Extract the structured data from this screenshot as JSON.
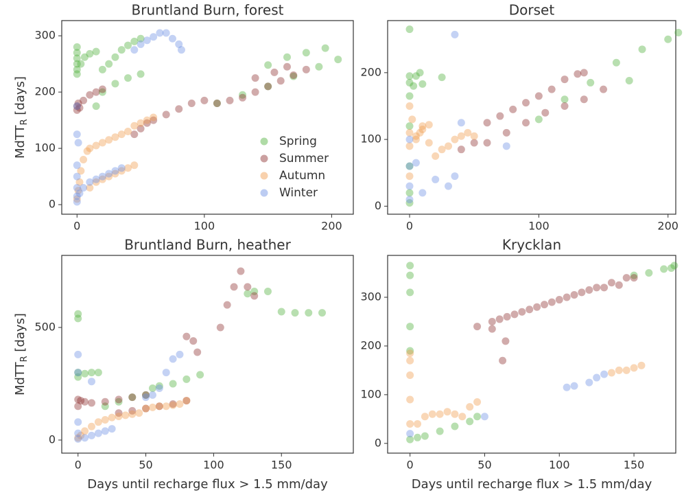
{
  "chart_data": [
    {
      "type": "scatter",
      "title": "Bruntland Burn, forest",
      "ylabel": {
        "main": "MdTT",
        "sub": "R",
        "rest": " [days]"
      },
      "xlim": [
        -12,
        217
      ],
      "ylim": [
        -17,
        327
      ],
      "xticks": [
        0,
        100,
        200
      ],
      "yticks": [
        0,
        100,
        200,
        300
      ],
      "legend": "lower right",
      "series": [
        {
          "name": "Spring",
          "color": "#4daf3a",
          "x": [
            0,
            0,
            0,
            0,
            0,
            0,
            3,
            6,
            10,
            15,
            20,
            25,
            30,
            35,
            40,
            45,
            50,
            20,
            30,
            40,
            50,
            110,
            130,
            150,
            170,
            190,
            205,
            150,
            165,
            180,
            195,
            15
          ],
          "y": [
            280,
            270,
            260,
            250,
            240,
            232,
            250,
            262,
            268,
            272,
            240,
            250,
            262,
            275,
            283,
            290,
            295,
            200,
            215,
            225,
            232,
            180,
            195,
            210,
            228,
            245,
            258,
            248,
            262,
            270,
            278,
            175
          ]
        },
        {
          "name": "Summer",
          "color": "#8b2c2c",
          "x": [
            0,
            0,
            1,
            2,
            5,
            10,
            15,
            20,
            45,
            50,
            55,
            60,
            70,
            80,
            90,
            100,
            110,
            120,
            130,
            140,
            150,
            160,
            170,
            180,
            140,
            155,
            165
          ],
          "y": [
            168,
            175,
            180,
            172,
            185,
            195,
            200,
            205,
            125,
            135,
            145,
            150,
            160,
            170,
            180,
            185,
            180,
            185,
            190,
            200,
            210,
            220,
            230,
            240,
            225,
            235,
            245
          ]
        },
        {
          "name": "Autumn",
          "color": "#ef9a4a",
          "x": [
            0,
            1,
            2,
            3,
            5,
            8,
            10,
            15,
            20,
            25,
            30,
            35,
            40,
            45,
            50,
            55,
            60,
            10,
            15,
            20,
            25,
            30,
            35,
            40,
            45
          ],
          "y": [
            10,
            25,
            40,
            60,
            80,
            95,
            100,
            105,
            110,
            115,
            120,
            125,
            130,
            140,
            145,
            150,
            155,
            30,
            40,
            45,
            50,
            55,
            60,
            65,
            70
          ]
        },
        {
          "name": "Winter",
          "color": "#6b8fe3",
          "x": [
            0,
            0,
            0,
            0,
            0,
            0,
            1,
            2,
            5,
            10,
            15,
            20,
            25,
            30,
            35,
            45,
            50,
            55,
            60,
            65,
            70,
            75,
            80,
            82,
            0
          ],
          "y": [
            5,
            15,
            30,
            50,
            70,
            125,
            110,
            20,
            30,
            40,
            45,
            50,
            55,
            60,
            65,
            275,
            285,
            292,
            298,
            305,
            305,
            295,
            285,
            275,
            175
          ]
        }
      ]
    },
    {
      "type": "scatter",
      "title": "Dorset",
      "xlim": [
        -17,
        206
      ],
      "ylim": [
        -12,
        278
      ],
      "xticks": [
        0,
        100,
        200
      ],
      "yticks": [
        0,
        100,
        200
      ],
      "series": [
        {
          "color": "#4daf3a",
          "x": [
            0,
            0,
            0,
            0,
            0,
            0,
            0,
            0,
            3,
            5,
            8,
            10,
            25,
            100,
            120,
            140,
            160,
            180,
            200,
            208,
            170
          ],
          "y": [
            5,
            20,
            60,
            120,
            165,
            185,
            195,
            265,
            180,
            195,
            200,
            183,
            193,
            130,
            160,
            185,
            215,
            235,
            250,
            260,
            188
          ]
        },
        {
          "color": "#8b2c2c",
          "x": [
            40,
            50,
            60,
            70,
            80,
            90,
            100,
            110,
            120,
            130,
            135,
            60,
            75,
            90,
            105,
            120,
            135,
            150
          ],
          "y": [
            85,
            95,
            125,
            135,
            145,
            155,
            165,
            175,
            190,
            198,
            200,
            95,
            110,
            125,
            140,
            150,
            160,
            175
          ]
        },
        {
          "color": "#ef9a4a",
          "x": [
            0,
            0,
            0,
            0,
            2,
            5,
            8,
            10,
            15,
            20,
            25,
            30,
            35,
            40,
            45,
            50,
            5,
            10,
            15
          ],
          "y": [
            45,
            90,
            110,
            150,
            130,
            105,
            110,
            120,
            95,
            75,
            85,
            90,
            100,
            105,
            110,
            105,
            100,
            115,
            122
          ]
        },
        {
          "color": "#6b8fe3",
          "x": [
            0,
            0,
            0,
            5,
            10,
            20,
            30,
            35,
            40,
            75,
            0,
            35
          ],
          "y": [
            10,
            30,
            60,
            65,
            20,
            40,
            30,
            45,
            125,
            90,
            100,
            257
          ]
        }
      ]
    },
    {
      "type": "scatter",
      "title": "Bruntland Burn, heather",
      "ylabel": {
        "main": "MdTT",
        "sub": "R",
        "rest": " [days]"
      },
      "xlabel": "Days until recharge flux > 1.5 mm/day",
      "xlim": [
        -12,
        203
      ],
      "ylim": [
        -58,
        820
      ],
      "xticks": [
        0,
        50,
        100,
        150
      ],
      "yticks": [
        0,
        500
      ],
      "series": [
        {
          "color": "#4daf3a",
          "x": [
            0,
            0,
            0,
            0,
            5,
            10,
            15,
            20,
            30,
            40,
            50,
            55,
            60,
            70,
            80,
            90,
            125,
            130,
            140,
            150,
            160,
            170,
            180
          ],
          "y": [
            280,
            300,
            540,
            560,
            295,
            300,
            300,
            150,
            170,
            190,
            200,
            230,
            240,
            250,
            270,
            290,
            650,
            660,
            660,
            570,
            565,
            565,
            565
          ]
        },
        {
          "color": "#8b2c2c",
          "x": [
            0,
            0,
            2,
            5,
            10,
            20,
            30,
            40,
            50,
            30,
            40,
            50,
            60,
            70,
            80,
            80,
            85,
            88,
            105,
            110,
            115,
            120,
            125,
            130
          ],
          "y": [
            150,
            180,
            175,
            170,
            165,
            170,
            180,
            190,
            200,
            120,
            130,
            140,
            150,
            160,
            175,
            460,
            440,
            390,
            500,
            600,
            680,
            750,
            680,
            640
          ]
        },
        {
          "color": "#ef9a4a",
          "x": [
            0,
            2,
            5,
            10,
            15,
            20,
            25,
            30,
            35,
            40,
            45,
            50,
            55,
            60,
            65,
            70,
            75,
            80
          ],
          "y": [
            10,
            20,
            40,
            60,
            80,
            90,
            100,
            105,
            110,
            115,
            120,
            140,
            145,
            150,
            150,
            155,
            160,
            175
          ]
        },
        {
          "color": "#6b8fe3",
          "x": [
            0,
            0,
            0,
            0,
            0,
            5,
            10,
            15,
            20,
            25,
            50,
            55,
            60,
            65,
            70,
            75,
            10
          ],
          "y": [
            5,
            30,
            80,
            300,
            380,
            10,
            20,
            30,
            40,
            50,
            190,
            200,
            230,
            300,
            360,
            380,
            260
          ]
        }
      ]
    },
    {
      "type": "scatter",
      "title": "Krycklan",
      "xlabel": "Days until recharge flux > 1.5 mm/day",
      "xlim": [
        -15,
        178
      ],
      "ylim": [
        -20,
        386
      ],
      "xticks": [
        0,
        50,
        100,
        150
      ],
      "yticks": [
        0,
        100,
        200,
        300
      ],
      "series": [
        {
          "color": "#4daf3a",
          "x": [
            0,
            0,
            0,
            0,
            0,
            0,
            5,
            10,
            20,
            30,
            40,
            45,
            150,
            160,
            170,
            175,
            177
          ],
          "y": [
            8,
            190,
            240,
            310,
            345,
            365,
            12,
            15,
            25,
            35,
            45,
            55,
            345,
            350,
            358,
            360,
            365
          ]
        },
        {
          "color": "#8b2c2c",
          "x": [
            45,
            55,
            65,
            75,
            85,
            95,
            105,
            115,
            125,
            135,
            145,
            60,
            70,
            80,
            90,
            100,
            110,
            120,
            130,
            140,
            150,
            62,
            64,
            55
          ],
          "y": [
            240,
            250,
            260,
            270,
            280,
            290,
            300,
            310,
            320,
            330,
            340,
            255,
            265,
            275,
            285,
            295,
            305,
            315,
            320,
            325,
            340,
            170,
            210,
            235
          ]
        },
        {
          "color": "#ef9a4a",
          "x": [
            0,
            0,
            0,
            0,
            0,
            5,
            10,
            15,
            20,
            25,
            30,
            35,
            40,
            45,
            135,
            140,
            145,
            150,
            155
          ],
          "y": [
            40,
            90,
            140,
            170,
            185,
            40,
            55,
            60,
            60,
            65,
            60,
            55,
            75,
            85,
            145,
            150,
            150,
            155,
            160
          ]
        },
        {
          "color": "#6b8fe3",
          "x": [
            0,
            50,
            105,
            110,
            120,
            125,
            130
          ],
          "y": [
            20,
            55,
            115,
            118,
            125,
            135,
            142
          ]
        }
      ]
    }
  ]
}
